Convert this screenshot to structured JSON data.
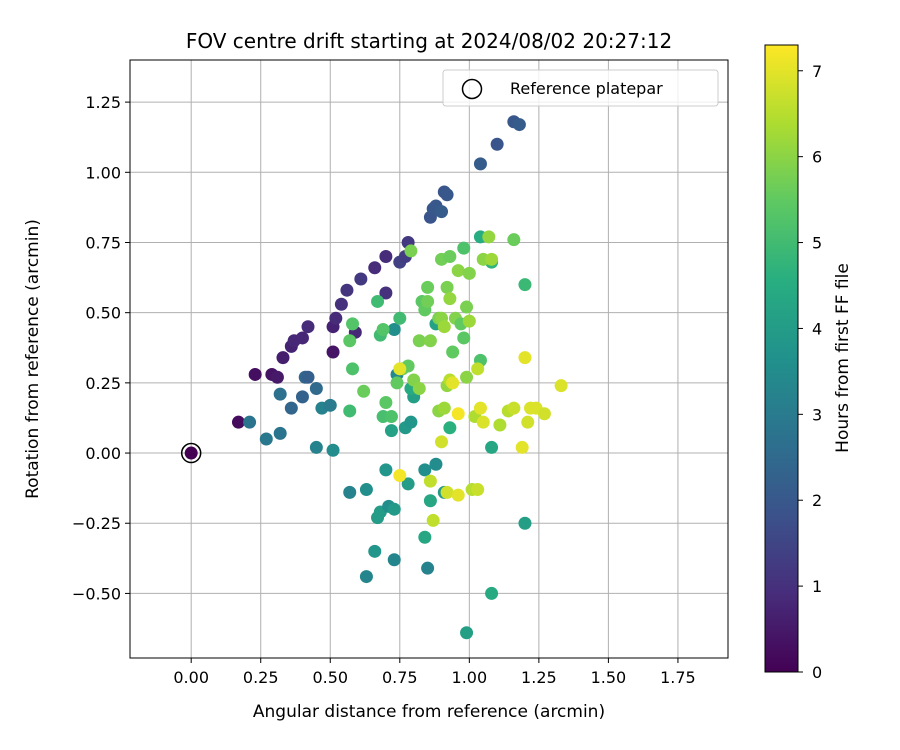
{
  "chart_data": {
    "type": "scatter",
    "title": "FOV centre drift starting at 2024/08/02 20:27:12",
    "xlabel": "Angular distance from reference (arcmin)",
    "ylabel": "Rotation from reference (arcmin)",
    "xlim": [
      -0.22,
      1.93
    ],
    "ylim": [
      -0.73,
      1.4
    ],
    "xticks": [
      0.0,
      0.25,
      0.5,
      0.75,
      1.0,
      1.25,
      1.5,
      1.75
    ],
    "xtick_labels": [
      "0.00",
      "0.25",
      "0.50",
      "0.75",
      "1.00",
      "1.25",
      "1.50",
      "1.75"
    ],
    "yticks": [
      -0.5,
      -0.25,
      0.0,
      0.25,
      0.5,
      0.75,
      1.0,
      1.25
    ],
    "ytick_labels": [
      "−0.50",
      "−0.25",
      "0.00",
      "0.25",
      "0.50",
      "0.75",
      "1.00",
      "1.25"
    ],
    "grid": true,
    "legend": {
      "position": "upper-right",
      "entries": [
        "Reference platepar"
      ]
    },
    "reference_point": {
      "x": 0.0,
      "y": 0.0,
      "hours": 0.0
    },
    "colormap": "viridis",
    "colorbar": {
      "label": "Hours from first FF file",
      "range": [
        0,
        7.3
      ],
      "ticks": [
        0,
        1,
        2,
        3,
        4,
        5,
        6,
        7
      ],
      "tick_labels": [
        "0",
        "1",
        "2",
        "3",
        "4",
        "5",
        "6",
        "7"
      ]
    },
    "points": [
      {
        "x": 0.17,
        "y": 0.11,
        "h": 0.2
      },
      {
        "x": 0.23,
        "y": 0.28,
        "h": 0.3
      },
      {
        "x": 0.29,
        "y": 0.28,
        "h": 0.4
      },
      {
        "x": 0.31,
        "y": 0.27,
        "h": 0.5
      },
      {
        "x": 0.33,
        "y": 0.34,
        "h": 0.6
      },
      {
        "x": 0.36,
        "y": 0.38,
        "h": 0.7
      },
      {
        "x": 0.37,
        "y": 0.4,
        "h": 0.8
      },
      {
        "x": 0.4,
        "y": 0.41,
        "h": 0.8
      },
      {
        "x": 0.42,
        "y": 0.45,
        "h": 0.9
      },
      {
        "x": 0.51,
        "y": 0.36,
        "h": 0.4
      },
      {
        "x": 0.51,
        "y": 0.45,
        "h": 0.7
      },
      {
        "x": 0.52,
        "y": 0.48,
        "h": 0.9
      },
      {
        "x": 0.54,
        "y": 0.53,
        "h": 1.0
      },
      {
        "x": 0.56,
        "y": 0.58,
        "h": 1.1
      },
      {
        "x": 0.59,
        "y": 0.43,
        "h": 0.8
      },
      {
        "x": 0.61,
        "y": 0.62,
        "h": 1.2
      },
      {
        "x": 0.66,
        "y": 0.66,
        "h": 0.9
      },
      {
        "x": 0.7,
        "y": 0.7,
        "h": 0.9
      },
      {
        "x": 0.7,
        "y": 0.57,
        "h": 1.0
      },
      {
        "x": 0.75,
        "y": 0.68,
        "h": 1.4
      },
      {
        "x": 0.77,
        "y": 0.7,
        "h": 1.3
      },
      {
        "x": 0.78,
        "y": 0.75,
        "h": 1.2
      },
      {
        "x": 0.86,
        "y": 0.84,
        "h": 1.9
      },
      {
        "x": 0.87,
        "y": 0.87,
        "h": 2.0
      },
      {
        "x": 0.88,
        "y": 0.88,
        "h": 2.0
      },
      {
        "x": 0.9,
        "y": 0.86,
        "h": 2.1
      },
      {
        "x": 0.91,
        "y": 0.93,
        "h": 1.9
      },
      {
        "x": 0.92,
        "y": 0.92,
        "h": 2.0
      },
      {
        "x": 1.04,
        "y": 1.03,
        "h": 2.1
      },
      {
        "x": 1.1,
        "y": 1.1,
        "h": 1.9
      },
      {
        "x": 1.16,
        "y": 1.18,
        "h": 2.0
      },
      {
        "x": 1.18,
        "y": 1.17,
        "h": 2.1
      },
      {
        "x": 0.21,
        "y": 0.11,
        "h": 2.8
      },
      {
        "x": 0.27,
        "y": 0.05,
        "h": 2.9
      },
      {
        "x": 0.32,
        "y": 0.07,
        "h": 2.8
      },
      {
        "x": 0.32,
        "y": 0.21,
        "h": 2.7
      },
      {
        "x": 0.36,
        "y": 0.16,
        "h": 2.4
      },
      {
        "x": 0.4,
        "y": 0.2,
        "h": 2.3
      },
      {
        "x": 0.41,
        "y": 0.27,
        "h": 2.4
      },
      {
        "x": 0.42,
        "y": 0.27,
        "h": 2.2
      },
      {
        "x": 0.45,
        "y": 0.02,
        "h": 3.2
      },
      {
        "x": 0.45,
        "y": 0.23,
        "h": 2.5
      },
      {
        "x": 0.47,
        "y": 0.16,
        "h": 3.2
      },
      {
        "x": 0.5,
        "y": 0.17,
        "h": 3.0
      },
      {
        "x": 0.51,
        "y": 0.01,
        "h": 3.5
      },
      {
        "x": 0.57,
        "y": -0.14,
        "h": 3.2
      },
      {
        "x": 0.63,
        "y": -0.13,
        "h": 3.6
      },
      {
        "x": 0.63,
        "y": -0.44,
        "h": 3.3
      },
      {
        "x": 0.66,
        "y": -0.35,
        "h": 3.8
      },
      {
        "x": 0.67,
        "y": -0.23,
        "h": 4.0
      },
      {
        "x": 0.68,
        "y": -0.21,
        "h": 4.0
      },
      {
        "x": 0.7,
        "y": -0.06,
        "h": 3.8
      },
      {
        "x": 0.71,
        "y": -0.19,
        "h": 3.6
      },
      {
        "x": 0.73,
        "y": -0.2,
        "h": 3.9
      },
      {
        "x": 0.73,
        "y": -0.38,
        "h": 3.3
      },
      {
        "x": 0.72,
        "y": 0.08,
        "h": 4.2
      },
      {
        "x": 0.74,
        "y": 0.28,
        "h": 3.4
      },
      {
        "x": 0.73,
        "y": 0.44,
        "h": 3.6
      },
      {
        "x": 0.77,
        "y": 0.09,
        "h": 3.9
      },
      {
        "x": 0.78,
        "y": -0.11,
        "h": 4.0
      },
      {
        "x": 0.79,
        "y": 0.11,
        "h": 3.8
      },
      {
        "x": 0.8,
        "y": 0.2,
        "h": 4.1
      },
      {
        "x": 0.79,
        "y": 0.23,
        "h": 4.4
      },
      {
        "x": 0.84,
        "y": -0.06,
        "h": 3.6
      },
      {
        "x": 0.85,
        "y": -0.41,
        "h": 3.2
      },
      {
        "x": 0.84,
        "y": -0.3,
        "h": 4.3
      },
      {
        "x": 0.86,
        "y": -0.17,
        "h": 4.3
      },
      {
        "x": 0.88,
        "y": -0.04,
        "h": 3.5
      },
      {
        "x": 0.88,
        "y": 0.46,
        "h": 4.2
      },
      {
        "x": 0.91,
        "y": -0.14,
        "h": 3.9
      },
      {
        "x": 0.93,
        "y": 0.09,
        "h": 4.6
      },
      {
        "x": 0.99,
        "y": -0.64,
        "h": 4.1
      },
      {
        "x": 1.08,
        "y": 0.02,
        "h": 4.3
      },
      {
        "x": 1.08,
        "y": -0.5,
        "h": 4.4
      },
      {
        "x": 1.04,
        "y": 0.77,
        "h": 4.5
      },
      {
        "x": 1.08,
        "y": 0.68,
        "h": 4.7
      },
      {
        "x": 1.2,
        "y": -0.25,
        "h": 4.1
      },
      {
        "x": 1.2,
        "y": 0.6,
        "h": 4.9
      },
      {
        "x": 0.57,
        "y": 0.15,
        "h": 5.0
      },
      {
        "x": 0.58,
        "y": 0.3,
        "h": 5.2
      },
      {
        "x": 0.57,
        "y": 0.4,
        "h": 5.4
      },
      {
        "x": 0.58,
        "y": 0.46,
        "h": 5.3
      },
      {
        "x": 0.62,
        "y": 0.22,
        "h": 5.6
      },
      {
        "x": 0.67,
        "y": 0.54,
        "h": 5.0
      },
      {
        "x": 0.68,
        "y": 0.42,
        "h": 5.0
      },
      {
        "x": 0.69,
        "y": 0.44,
        "h": 5.3
      },
      {
        "x": 0.69,
        "y": 0.13,
        "h": 5.1
      },
      {
        "x": 0.7,
        "y": 0.18,
        "h": 5.4
      },
      {
        "x": 0.72,
        "y": 0.13,
        "h": 5.2
      },
      {
        "x": 0.74,
        "y": 0.25,
        "h": 5.5
      },
      {
        "x": 0.75,
        "y": 0.48,
        "h": 5.0
      },
      {
        "x": 0.76,
        "y": 0.3,
        "h": 5.7
      },
      {
        "x": 0.78,
        "y": 0.31,
        "h": 5.5
      },
      {
        "x": 0.79,
        "y": 0.72,
        "h": 5.8
      },
      {
        "x": 0.8,
        "y": 0.26,
        "h": 5.9
      },
      {
        "x": 0.82,
        "y": 0.23,
        "h": 6.0
      },
      {
        "x": 0.82,
        "y": 0.4,
        "h": 5.8
      },
      {
        "x": 0.83,
        "y": 0.54,
        "h": 5.4
      },
      {
        "x": 0.84,
        "y": 0.51,
        "h": 5.5
      },
      {
        "x": 0.85,
        "y": 0.59,
        "h": 5.6
      },
      {
        "x": 0.85,
        "y": 0.54,
        "h": 5.7
      },
      {
        "x": 0.86,
        "y": 0.4,
        "h": 5.9
      },
      {
        "x": 0.89,
        "y": 0.15,
        "h": 6.0
      },
      {
        "x": 0.89,
        "y": 0.48,
        "h": 5.8
      },
      {
        "x": 0.9,
        "y": 0.69,
        "h": 5.7
      },
      {
        "x": 0.9,
        "y": 0.48,
        "h": 6.0
      },
      {
        "x": 0.91,
        "y": 0.45,
        "h": 6.2
      },
      {
        "x": 0.92,
        "y": 0.24,
        "h": 6.1
      },
      {
        "x": 0.92,
        "y": 0.59,
        "h": 5.8
      },
      {
        "x": 0.93,
        "y": 0.7,
        "h": 5.6
      },
      {
        "x": 0.93,
        "y": 0.55,
        "h": 6.1
      },
      {
        "x": 0.94,
        "y": 0.36,
        "h": 5.5
      },
      {
        "x": 0.95,
        "y": 0.48,
        "h": 5.9
      },
      {
        "x": 0.96,
        "y": 0.65,
        "h": 6.0
      },
      {
        "x": 0.97,
        "y": 0.46,
        "h": 5.5
      },
      {
        "x": 0.98,
        "y": 0.73,
        "h": 5.2
      },
      {
        "x": 0.98,
        "y": 0.41,
        "h": 5.4
      },
      {
        "x": 0.99,
        "y": 0.52,
        "h": 5.8
      },
      {
        "x": 0.99,
        "y": 0.27,
        "h": 6.0
      },
      {
        "x": 1.0,
        "y": 0.64,
        "h": 5.9
      },
      {
        "x": 1.0,
        "y": 0.47,
        "h": 6.2
      },
      {
        "x": 1.04,
        "y": 0.33,
        "h": 5.2
      },
      {
        "x": 1.05,
        "y": 0.69,
        "h": 6.0
      },
      {
        "x": 1.07,
        "y": 0.77,
        "h": 6.1
      },
      {
        "x": 1.08,
        "y": 0.69,
        "h": 6.2
      },
      {
        "x": 1.16,
        "y": 0.76,
        "h": 5.6
      },
      {
        "x": 0.75,
        "y": 0.3,
        "h": 7.0
      },
      {
        "x": 0.75,
        "y": -0.08,
        "h": 7.2
      },
      {
        "x": 0.86,
        "y": -0.1,
        "h": 6.6
      },
      {
        "x": 0.87,
        "y": -0.24,
        "h": 6.6
      },
      {
        "x": 0.9,
        "y": 0.04,
        "h": 6.8
      },
      {
        "x": 0.91,
        "y": 0.16,
        "h": 6.2
      },
      {
        "x": 0.92,
        "y": -0.14,
        "h": 6.8
      },
      {
        "x": 0.93,
        "y": 0.26,
        "h": 6.5
      },
      {
        "x": 0.94,
        "y": 0.25,
        "h": 7.0
      },
      {
        "x": 0.96,
        "y": 0.14,
        "h": 7.2
      },
      {
        "x": 0.96,
        "y": -0.15,
        "h": 7.0
      },
      {
        "x": 1.01,
        "y": -0.13,
        "h": 6.5
      },
      {
        "x": 1.02,
        "y": 0.13,
        "h": 6.4
      },
      {
        "x": 1.03,
        "y": 0.3,
        "h": 6.6
      },
      {
        "x": 1.03,
        "y": -0.13,
        "h": 6.7
      },
      {
        "x": 1.04,
        "y": 0.16,
        "h": 7.0
      },
      {
        "x": 1.05,
        "y": 0.11,
        "h": 6.9
      },
      {
        "x": 1.11,
        "y": 0.1,
        "h": 6.4
      },
      {
        "x": 1.14,
        "y": 0.15,
        "h": 6.5
      },
      {
        "x": 1.16,
        "y": 0.16,
        "h": 6.7
      },
      {
        "x": 1.19,
        "y": 0.02,
        "h": 7.0
      },
      {
        "x": 1.2,
        "y": 0.34,
        "h": 7.0
      },
      {
        "x": 1.21,
        "y": 0.11,
        "h": 6.8
      },
      {
        "x": 1.22,
        "y": 0.16,
        "h": 6.9
      },
      {
        "x": 1.24,
        "y": 0.16,
        "h": 6.9
      },
      {
        "x": 1.27,
        "y": 0.14,
        "h": 6.8
      },
      {
        "x": 1.33,
        "y": 0.24,
        "h": 6.9
      }
    ]
  }
}
